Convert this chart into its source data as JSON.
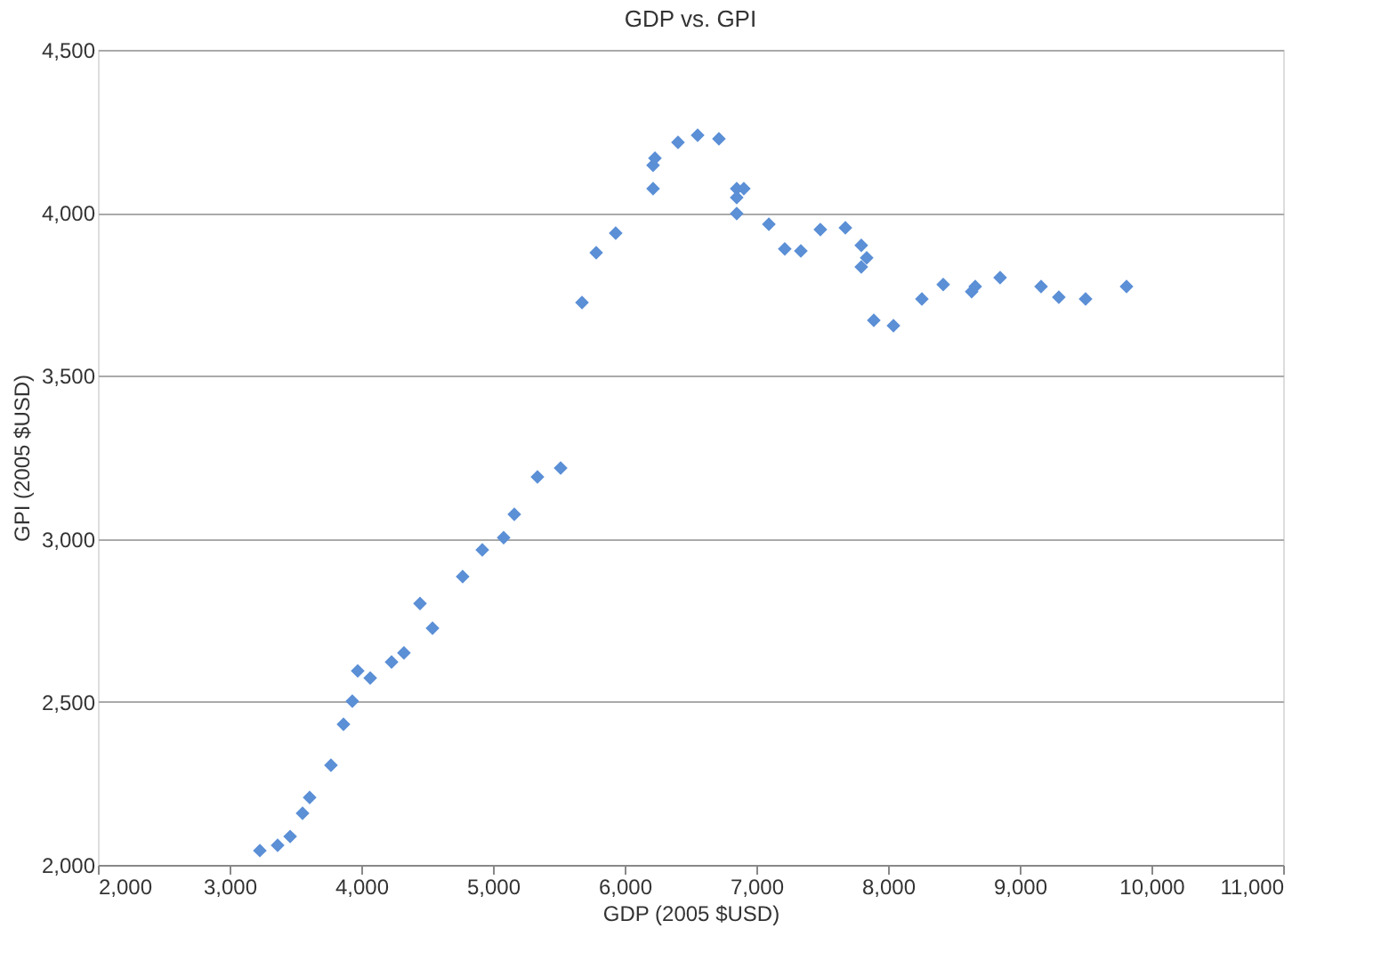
{
  "chart_data": {
    "type": "scatter",
    "title": "GDP vs. GPI",
    "xlabel": "GDP (2005 $USD)",
    "ylabel": "GPI (2005 $USD)",
    "x": [
      3230,
      3365,
      3460,
      3554,
      3608,
      3770,
      3865,
      3932,
      3973,
      4068,
      4230,
      4324,
      4446,
      4541,
      4770,
      4919,
      5081,
      5162,
      5338,
      5514,
      5676,
      5784,
      5932,
      6216,
      6216,
      6230,
      6405,
      6554,
      6716,
      6851,
      6905,
      6851,
      6851,
      7095,
      7216,
      7338,
      7486,
      7676,
      7797,
      7838,
      7797,
      7892,
      8041,
      8257,
      8419,
      8635,
      8662,
      8851,
      9162,
      9297,
      9500,
      9811
    ],
    "series": [
      {
        "color": "#5b8fd6",
        "values": [
          2044,
          2060,
          2087,
          2158,
          2207,
          2306,
          2431,
          2502,
          2595,
          2573,
          2622,
          2650,
          2802,
          2726,
          2884,
          2966,
          3004,
          3075,
          3190,
          3217,
          3725,
          3878,
          3938,
          4074,
          4146,
          4168,
          4216,
          4238,
          4227,
          4074,
          4074,
          4047,
          3998,
          3965,
          3889,
          3883,
          3949,
          3954,
          3900,
          3862,
          3834,
          3670,
          3654,
          3736,
          3780,
          3758,
          3774,
          3801,
          3774,
          3741,
          3736,
          3774
        ]
      }
    ],
    "xlim": [
      2000,
      11000
    ],
    "xticks": [
      {
        "value": 2000,
        "label": "2,000"
      },
      {
        "value": 3000,
        "label": "3,000"
      },
      {
        "value": 4000,
        "label": "4,000"
      },
      {
        "value": 5000,
        "label": "5,000"
      },
      {
        "value": 6000,
        "label": "6,000"
      },
      {
        "value": 7000,
        "label": "7,000"
      },
      {
        "value": 8000,
        "label": "8,000"
      },
      {
        "value": 9000,
        "label": "9,000"
      },
      {
        "value": 10000,
        "label": "10,000"
      },
      {
        "value": 11000,
        "label": "11,000"
      }
    ],
    "ylim": [
      2000,
      4500
    ],
    "yticks": [
      {
        "value": 2000,
        "label": "2,000"
      },
      {
        "value": 2500,
        "label": "2,500"
      },
      {
        "value": 3000,
        "label": "3,000"
      },
      {
        "value": 3500,
        "label": "3,500"
      },
      {
        "value": 4000,
        "label": "4,000"
      },
      {
        "value": 4500,
        "label": "4,500"
      }
    ],
    "grid": "y",
    "marker": "diamond"
  }
}
